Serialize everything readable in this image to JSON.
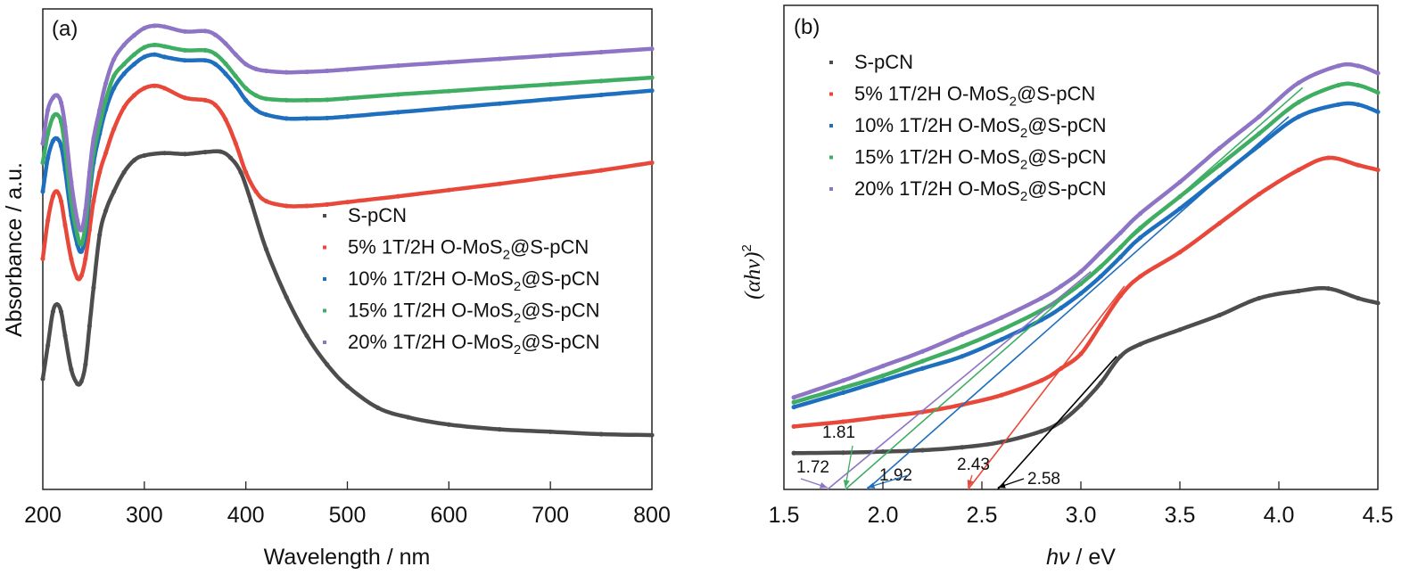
{
  "colors": {
    "S-pCN": "#4d4d4d",
    "5%": "#e8483a",
    "10%": "#1f6fbf",
    "15%": "#3fae63",
    "20%": "#8e74c4",
    "axis": "#222222"
  },
  "chart_data": [
    {
      "id": "a",
      "type": "line",
      "panel_label": "(a)",
      "title": "",
      "xlabel": "Wavelength / nm",
      "ylabel": "Absorbance / a.u.",
      "xlim": [
        200,
        800
      ],
      "ylim": [
        0,
        100
      ],
      "xticks": [
        "200",
        "300",
        "400",
        "500",
        "600",
        "700",
        "800"
      ],
      "yticks": [],
      "grid": false,
      "legend_position": "center-right",
      "legend": [
        {
          "label": "S-pCN",
          "sub": "",
          "marker": "square"
        },
        {
          "label": "5% 1T/2H O-MoS",
          "sub": "2",
          "suffix": "@S-pCN",
          "marker": "circle"
        },
        {
          "label": "10% 1T/2H O-MoS",
          "sub": "2",
          "suffix": "@S-pCN",
          "marker": "triangle-up"
        },
        {
          "label": "15% 1T/2H O-MoS",
          "sub": "2",
          "suffix": "@S-pCN",
          "marker": "triangle-down"
        },
        {
          "label": "20% 1T/2H O-MoS",
          "sub": "2",
          "suffix": "@S-pCN",
          "marker": "diamond"
        }
      ],
      "series": [
        {
          "name": "S-pCN",
          "x": [
            200,
            205,
            210,
            214,
            218,
            222,
            228,
            234,
            238,
            242,
            246,
            250,
            256,
            262,
            270,
            280,
            290,
            300,
            320,
            340,
            360,
            375,
            385,
            395,
            405,
            420,
            440,
            460,
            480,
            500,
            530,
            560,
            600,
            650,
            700,
            750,
            800
          ],
          "y": [
            23,
            30,
            37,
            38.5,
            37,
            32,
            25,
            22,
            22.5,
            26,
            34,
            42,
            53,
            58,
            62,
            66,
            68.5,
            69.5,
            70,
            69.8,
            70.2,
            70.3,
            69,
            66,
            60,
            50,
            40,
            32,
            26,
            21.5,
            17,
            15,
            13.5,
            12.5,
            12,
            11.5,
            11.3
          ]
        },
        {
          "name": "5% 1T/2H O-MoS2@S-pCN",
          "x": [
            200,
            205,
            210,
            214,
            218,
            222,
            228,
            234,
            238,
            242,
            246,
            250,
            256,
            262,
            270,
            280,
            290,
            300,
            310,
            320,
            340,
            360,
            370,
            380,
            390,
            400,
            410,
            420,
            440,
            460,
            480,
            500,
            550,
            600,
            650,
            700,
            750,
            800
          ],
          "y": [
            48,
            56,
            61,
            62,
            60,
            55,
            48,
            44,
            44.5,
            48,
            54,
            60,
            66,
            70,
            75,
            79.5,
            82,
            83.5,
            84,
            83.5,
            81.5,
            81,
            80,
            77,
            72,
            66,
            62,
            60,
            59,
            59,
            59.3,
            59.8,
            61,
            62.3,
            63.6,
            65,
            66.4,
            68
          ]
        },
        {
          "name": "10% 1T/2H O-MoS2@S-pCN",
          "x": [
            200,
            205,
            210,
            214,
            218,
            222,
            228,
            234,
            238,
            242,
            246,
            250,
            256,
            262,
            270,
            280,
            290,
            300,
            310,
            320,
            340,
            360,
            370,
            380,
            390,
            400,
            410,
            420,
            440,
            460,
            480,
            500,
            550,
            600,
            650,
            700,
            750,
            800
          ],
          "y": [
            62,
            69,
            72.5,
            73,
            71.5,
            66.5,
            57,
            51,
            49.5,
            53,
            61,
            68,
            74,
            79,
            83.5,
            86.5,
            88.5,
            90,
            90.5,
            90,
            89.3,
            89.3,
            88.5,
            86.5,
            84,
            81,
            79,
            78,
            77.2,
            77.2,
            77.3,
            77.6,
            78.5,
            79.4,
            80.3,
            81.2,
            82.1,
            83
          ]
        },
        {
          "name": "15% 1T/2H O-MoS2@S-pCN",
          "x": [
            200,
            205,
            210,
            214,
            218,
            222,
            228,
            234,
            238,
            242,
            246,
            250,
            256,
            262,
            270,
            280,
            290,
            300,
            310,
            320,
            340,
            360,
            370,
            380,
            390,
            400,
            410,
            420,
            440,
            460,
            480,
            500,
            550,
            600,
            650,
            700,
            750,
            800
          ],
          "y": [
            68,
            74,
            77.5,
            78,
            76.5,
            71,
            60,
            53,
            51,
            55,
            63,
            70,
            76,
            81,
            86,
            88.5,
            90.5,
            92,
            92.5,
            92.2,
            91.4,
            91.4,
            90.6,
            88.6,
            86,
            83.5,
            82,
            81.3,
            81,
            81,
            81.1,
            81.4,
            82.2,
            82.9,
            83.6,
            84.3,
            85,
            85.7
          ]
        },
        {
          "name": "20% 1T/2H O-MoS2@S-pCN",
          "x": [
            200,
            205,
            210,
            214,
            218,
            222,
            228,
            234,
            238,
            242,
            246,
            250,
            256,
            262,
            270,
            280,
            290,
            300,
            310,
            320,
            340,
            360,
            370,
            380,
            390,
            400,
            410,
            420,
            440,
            460,
            480,
            500,
            550,
            600,
            650,
            700,
            750,
            800
          ],
          "y": [
            72,
            79,
            81.5,
            82,
            80.5,
            75.5,
            64,
            56,
            54,
            58,
            66,
            73,
            79,
            84.5,
            89.5,
            92.5,
            94.5,
            96,
            96.5,
            96.3,
            95.3,
            95.4,
            94.6,
            92.8,
            90.5,
            88.5,
            87.5,
            87.1,
            86.8,
            86.9,
            87.1,
            87.4,
            88.2,
            88.9,
            89.6,
            90.3,
            91,
            91.7
          ]
        }
      ]
    },
    {
      "id": "b",
      "type": "line",
      "panel_label": "(b)",
      "title": "",
      "xlabel_italic": "hν",
      "xlabel_rest": " / eV",
      "ylabel_main": "(αhν)",
      "ylabel_sup": "2",
      "xlim": [
        1.5,
        4.5
      ],
      "ylim": [
        0,
        100
      ],
      "xticks": [
        "1.5",
        "2.0",
        "2.5",
        "3.0",
        "3.5",
        "4.0",
        "4.5"
      ],
      "yticks": [],
      "grid": false,
      "legend_position": "top-left",
      "legend": [
        {
          "label": "S-pCN",
          "sub": "",
          "marker": "square"
        },
        {
          "label": "5% 1T/2H O-MoS",
          "sub": "2",
          "suffix": "@S-pCN",
          "marker": "circle"
        },
        {
          "label": "10% 1T/2H O-MoS",
          "sub": "2",
          "suffix": "@S-pCN",
          "marker": "triangle-up"
        },
        {
          "label": "15% 1T/2H O-MoS",
          "sub": "2",
          "suffix": "@S-pCN",
          "marker": "triangle-down"
        },
        {
          "label": "20% 1T/2H O-MoS",
          "sub": "2",
          "suffix": "@S-pCN",
          "marker": "diamond"
        }
      ],
      "series": [
        {
          "name": "S-pCN",
          "x": [
            1.55,
            1.8,
            2.0,
            2.2,
            2.4,
            2.6,
            2.8,
            2.9,
            3.0,
            3.1,
            3.2,
            3.3,
            3.5,
            3.7,
            3.9,
            4.1,
            4.25,
            4.4,
            4.5
          ],
          "y": [
            7.5,
            7.6,
            7.8,
            8.1,
            8.7,
            9.8,
            12,
            14,
            17.5,
            22,
            27.5,
            30,
            33,
            36,
            39.5,
            41,
            41.5,
            39.5,
            38.5
          ]
        },
        {
          "name": "5% 1T/2H O-MoS2@S-pCN",
          "x": [
            1.55,
            1.8,
            2.0,
            2.2,
            2.4,
            2.6,
            2.8,
            2.9,
            3.0,
            3.1,
            3.2,
            3.3,
            3.5,
            3.7,
            3.9,
            4.1,
            4.25,
            4.4,
            4.5
          ],
          "y": [
            13,
            14,
            15,
            16,
            17.5,
            19.5,
            22.5,
            25,
            28,
            34,
            40,
            44,
            49,
            55,
            61,
            66,
            68.5,
            67,
            66
          ]
        },
        {
          "name": "10% 1T/2H O-MoS2@S-pCN",
          "x": [
            1.55,
            1.8,
            2.0,
            2.2,
            2.4,
            2.6,
            2.8,
            2.9,
            3.0,
            3.1,
            3.2,
            3.3,
            3.5,
            3.7,
            3.9,
            4.1,
            4.3,
            4.4,
            4.5
          ],
          "y": [
            17,
            20,
            22.5,
            25,
            27.5,
            31,
            35,
            37.5,
            40.5,
            44,
            48,
            52,
            58,
            64.5,
            71,
            77,
            79.5,
            79.5,
            78
          ]
        },
        {
          "name": "15% 1T/2H O-MoS2@S-pCN",
          "x": [
            1.55,
            1.8,
            2.0,
            2.2,
            2.4,
            2.6,
            2.8,
            2.9,
            3.0,
            3.1,
            3.2,
            3.3,
            3.5,
            3.7,
            3.9,
            4.1,
            4.3,
            4.4,
            4.5
          ],
          "y": [
            18,
            21,
            23.5,
            26.5,
            29.5,
            33,
            37,
            39.5,
            42.5,
            46,
            50,
            54,
            60.5,
            67,
            73.5,
            80,
            83.5,
            83.5,
            82
          ]
        },
        {
          "name": "20% 1T/2H O-MoS2@S-pCN",
          "x": [
            1.55,
            1.8,
            2.0,
            2.2,
            2.4,
            2.6,
            2.8,
            2.9,
            3.0,
            3.1,
            3.2,
            3.3,
            3.5,
            3.7,
            3.9,
            4.1,
            4.3,
            4.4,
            4.5
          ],
          "y": [
            19,
            22.5,
            25.5,
            28.5,
            32,
            35.5,
            39.5,
            42,
            45,
            49,
            53,
            57,
            63.5,
            70.5,
            77,
            84,
            87.5,
            87.5,
            86
          ]
        }
      ],
      "tangents": [
        {
          "series": "S-pCN",
          "x0": 2.58,
          "x1": 3.18,
          "y1": 27.5
        },
        {
          "series": "5% 1T/2H O-MoS2@S-pCN",
          "x0": 2.43,
          "x1": 3.22,
          "y1": 42
        },
        {
          "series": "10% 1T/2H O-MoS2@S-pCN",
          "x0": 1.92,
          "x1": 4.05,
          "y1": 77
        },
        {
          "series": "15% 1T/2H O-MoS2@S-pCN",
          "x0": 1.81,
          "x1": 4.12,
          "y1": 83
        },
        {
          "series": "20% 1T/2H O-MoS2@S-pCN",
          "x0": 1.72,
          "x1": 3.05,
          "y1": 45
        }
      ],
      "annotations": [
        {
          "text": "1.72",
          "x": 1.72,
          "series": "20% 1T/2H O-MoS2@S-pCN"
        },
        {
          "text": "1.81",
          "x": 1.81,
          "series": "15% 1T/2H O-MoS2@S-pCN"
        },
        {
          "text": "1.92",
          "x": 1.92,
          "series": "10% 1T/2H O-MoS2@S-pCN"
        },
        {
          "text": "2.43",
          "x": 2.43,
          "series": "5% 1T/2H O-MoS2@S-pCN"
        },
        {
          "text": "2.58",
          "x": 2.58,
          "series": "S-pCN"
        }
      ]
    }
  ]
}
